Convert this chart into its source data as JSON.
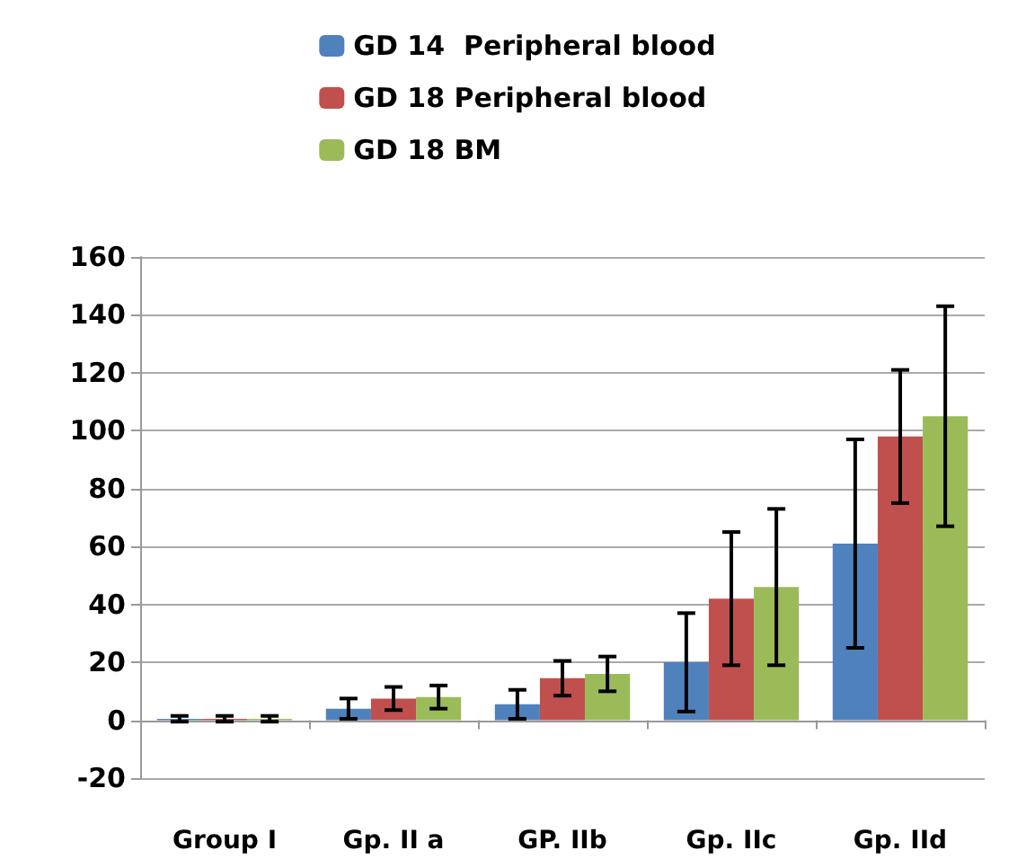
{
  "chart_data": {
    "type": "bar",
    "categories": [
      "Group I",
      "Gp. II a",
      "GP. IIb",
      "Gp. IIc",
      "Gp. IId"
    ],
    "series": [
      {
        "name": "GD 14  Peripheral blood",
        "color": "#4f81bd",
        "values": [
          0.5,
          4,
          5.5,
          20,
          61
        ],
        "errors": [
          1,
          3.5,
          5,
          17,
          36
        ]
      },
      {
        "name": "GD 18 Peripheral blood",
        "color": "#c0504d",
        "values": [
          0.5,
          7.5,
          14.5,
          42,
          98
        ],
        "errors": [
          1,
          4,
          6,
          23,
          23
        ]
      },
      {
        "name": "GD 18 BM",
        "color": "#9bbb59",
        "values": [
          0.5,
          8,
          16,
          46,
          105
        ],
        "errors": [
          1,
          4,
          6,
          27,
          38
        ]
      }
    ],
    "ylim": [
      -20,
      160
    ],
    "yticks": [
      -20,
      0,
      20,
      40,
      60,
      80,
      100,
      120,
      140,
      160
    ],
    "grid": "y",
    "legend": "top"
  }
}
